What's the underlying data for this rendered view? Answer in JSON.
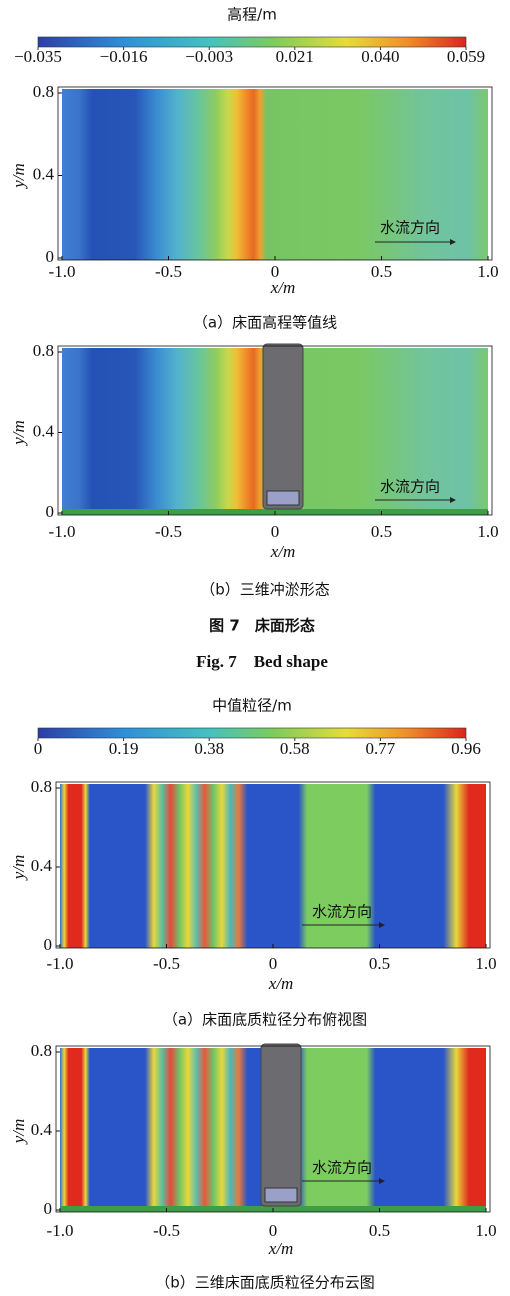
{
  "figure7": {
    "colorbar": {
      "label": "高程/m",
      "ticks": [
        {
          "value": -0.035,
          "label": "−0.035"
        },
        {
          "value": -0.016,
          "label": "−0.016"
        },
        {
          "value": -0.003,
          "label": "−0.003"
        },
        0.021,
        {
          "value": 0.04,
          "label": "0.040"
        },
        0.059
      ]
    },
    "panels": [
      {
        "caption": "（a）床面高程等值线",
        "annotation": "水流方向",
        "xlabel": "x/m",
        "ylabel": "y/m",
        "xlim": [
          -1,
          1
        ],
        "ylim": [
          0,
          0.8
        ],
        "xticks": [
          {
            "value": -1,
            "label": "-1.0"
          },
          -0.5,
          0,
          0.5,
          {
            "value": 1,
            "label": "1.0"
          }
        ],
        "yticks": [
          0,
          0.4,
          0.8
        ]
      },
      {
        "caption": "（b）三维冲淤形态",
        "annotation": "水流方向",
        "xlabel": "x/m",
        "ylabel": "y/m",
        "xlim": [
          -1,
          1
        ],
        "ylim": [
          0,
          0.8
        ],
        "xticks": [
          {
            "value": -1,
            "label": "-1.0"
          },
          -0.5,
          0,
          0.5,
          {
            "value": 1,
            "label": "1.0"
          }
        ],
        "yticks": [
          0,
          0.4,
          0.8
        ]
      }
    ],
    "title": "图 7　床面形态",
    "title_en": "Fig. 7　Bed shape"
  },
  "figure8": {
    "colorbar": {
      "label": "中值粒径/m",
      "ticks": [
        0,
        0.19,
        0.38,
        0.58,
        0.77,
        0.96
      ]
    },
    "panels": [
      {
        "caption": "（a）床面底质粒径分布俯视图",
        "annotation": "水流方向",
        "xlabel": "x/m",
        "ylabel": "y/m",
        "xlim": [
          -1,
          1
        ],
        "ylim": [
          0,
          0.8
        ],
        "xticks": [
          {
            "value": -1,
            "label": "-1.0"
          },
          -0.5,
          0,
          0.5,
          {
            "value": 1,
            "label": "1.0"
          }
        ],
        "yticks": [
          0,
          0.4,
          0.8
        ]
      },
      {
        "caption": "（b）三维床面底质粒径分布云图",
        "annotation": "水流方向",
        "xlabel": "x/m",
        "ylabel": "y/m",
        "xlim": [
          -1,
          1
        ],
        "ylim": [
          0,
          0.8
        ],
        "xticks": [
          {
            "value": -1,
            "label": "-1.0"
          },
          -0.5,
          0,
          0.5,
          {
            "value": 1,
            "label": "1.0"
          }
        ],
        "yticks": [
          0,
          0.4,
          0.8
        ]
      }
    ]
  }
}
